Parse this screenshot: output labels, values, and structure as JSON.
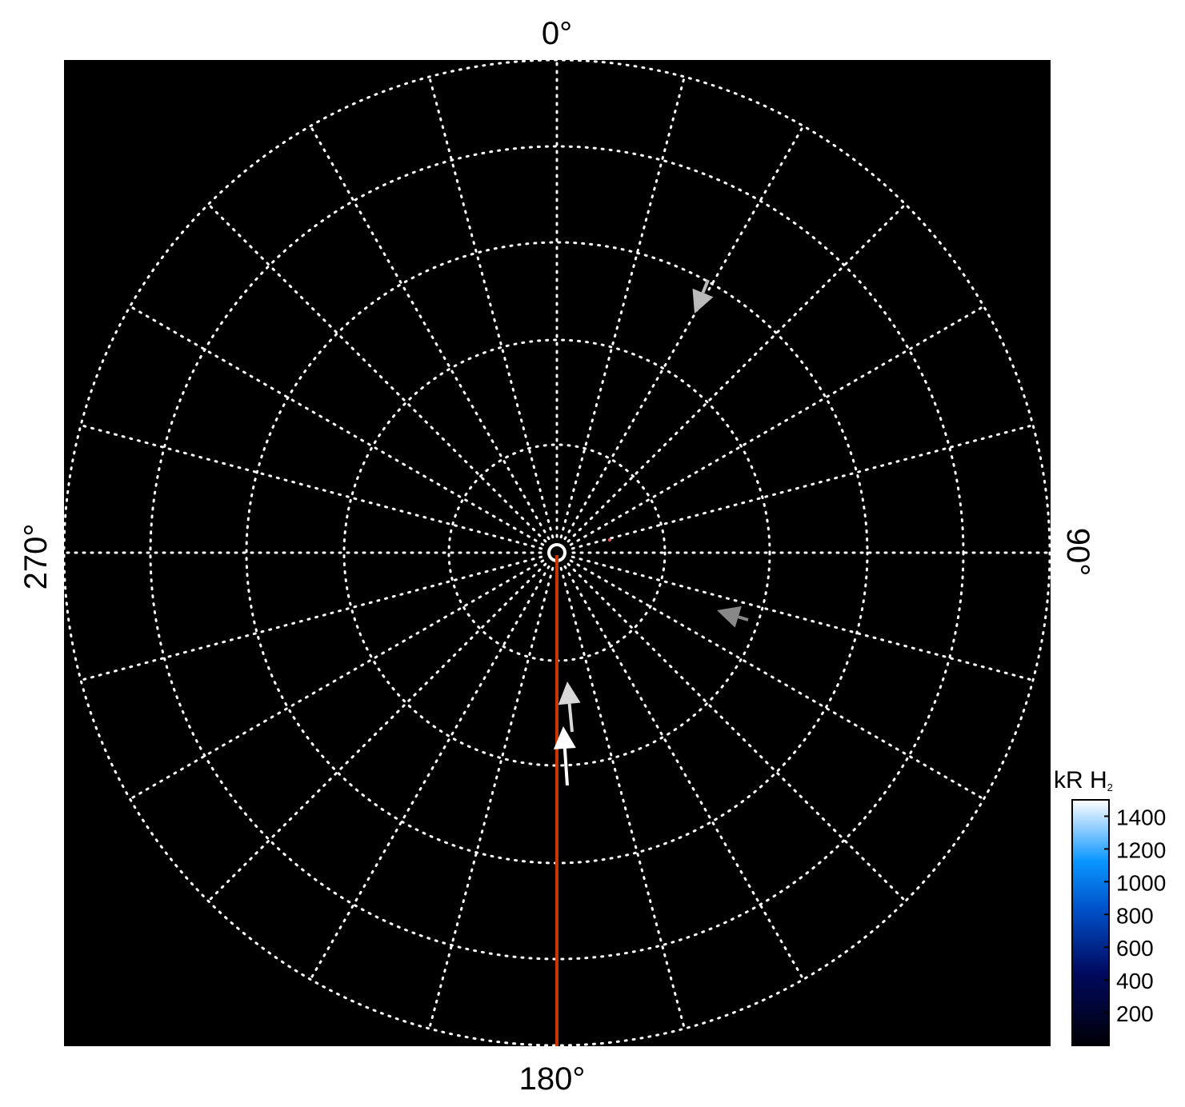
{
  "chart_data": {
    "type": "polar-map",
    "background": "#000000",
    "grid": true,
    "grid_color": "#ffffff",
    "longitude_spacing_deg": 15,
    "longitude_labels": [
      {
        "angle": 0,
        "text": "0°"
      },
      {
        "angle": 90,
        "text": "90°"
      },
      {
        "angle": 180,
        "text": "180°"
      },
      {
        "angle": 270,
        "text": "270°"
      }
    ],
    "meridian_highlight": {
      "longitude": 180,
      "color": "#cc3300"
    },
    "colorbar": {
      "title": "kR H",
      "title_subscript": "2",
      "ticks": [
        "1400",
        "1200",
        "1000",
        "800",
        "600",
        "400",
        "200"
      ],
      "tick_values": [
        1400,
        1200,
        1000,
        800,
        600,
        400,
        200
      ],
      "range": [
        0,
        1500
      ],
      "colors": [
        "#000005",
        "#000a60",
        "#0050c8",
        "#0a96ff",
        "#9fd4ff",
        "#ffffff"
      ]
    }
  }
}
